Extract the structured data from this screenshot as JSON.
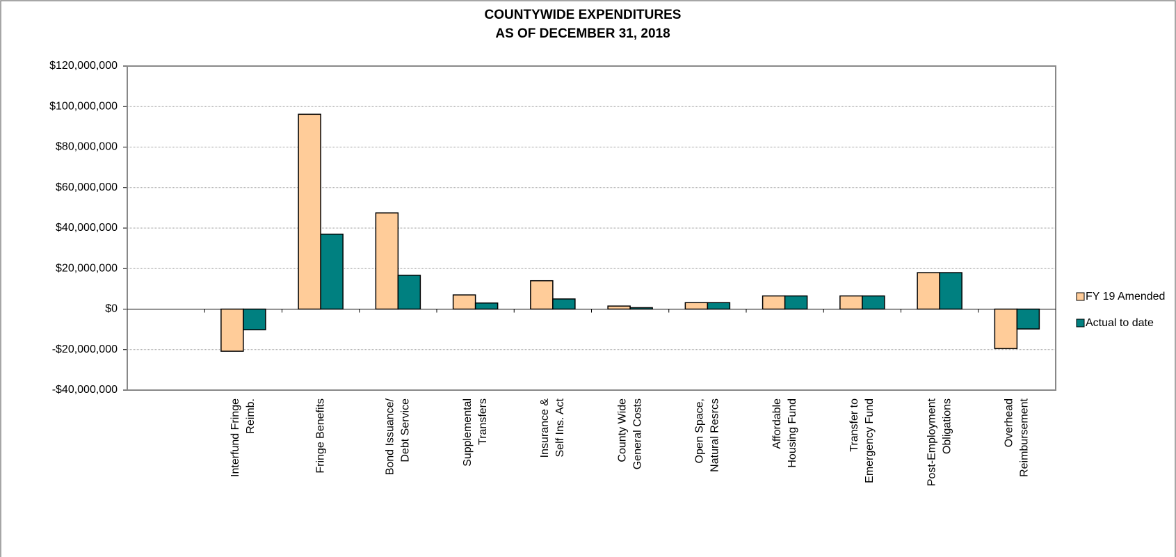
{
  "chart_data": {
    "type": "bar",
    "title": [
      "COUNTYWIDE EXPENDITURES",
      "AS OF DECEMBER 31, 2018"
    ],
    "categories": [
      null,
      [
        "Interfund Fringe",
        "Reimb."
      ],
      [
        "Fringe Benefits"
      ],
      [
        "Bond Issuance/",
        "Debt Service"
      ],
      [
        "Supplemental",
        "Transfers"
      ],
      [
        "Insurance &",
        "Self Ins. Act"
      ],
      [
        "County Wide",
        "General Costs"
      ],
      [
        "Open Space,",
        "Natural Resrcs"
      ],
      [
        "Affordable",
        "Housing Fund"
      ],
      [
        "Transfer to",
        "Emergency Fund"
      ],
      [
        "Post-Employment",
        "Obligations"
      ],
      [
        "Overhead",
        "Reimbursement"
      ]
    ],
    "series": [
      {
        "name": "FY 19 Amended",
        "color": "#FFCC99",
        "values": [
          null,
          -20800000,
          96200000,
          47500000,
          7000000,
          14000000,
          1500000,
          3200000,
          6500000,
          6500000,
          18000000,
          -19500000
        ]
      },
      {
        "name": "Actual to date",
        "color": "#008080",
        "values": [
          null,
          -10200000,
          37000000,
          16700000,
          3000000,
          5000000,
          700000,
          3200000,
          6500000,
          6500000,
          18000000,
          -9800000
        ]
      }
    ],
    "ylim": [
      -40000000,
      120000000
    ],
    "yticks": [
      {
        "value": -40000000,
        "label": "-$40,000,000"
      },
      {
        "value": -20000000,
        "label": "-$20,000,000"
      },
      {
        "value": 0,
        "label": "$0"
      },
      {
        "value": 20000000,
        "label": "$20,000,000"
      },
      {
        "value": 40000000,
        "label": "$40,000,000"
      },
      {
        "value": 60000000,
        "label": "$60,000,000"
      },
      {
        "value": 80000000,
        "label": "$80,000,000"
      },
      {
        "value": 100000000,
        "label": "$100,000,000"
      },
      {
        "value": 120000000,
        "label": "$120,000,000"
      }
    ],
    "grid": true,
    "legend": "right"
  }
}
